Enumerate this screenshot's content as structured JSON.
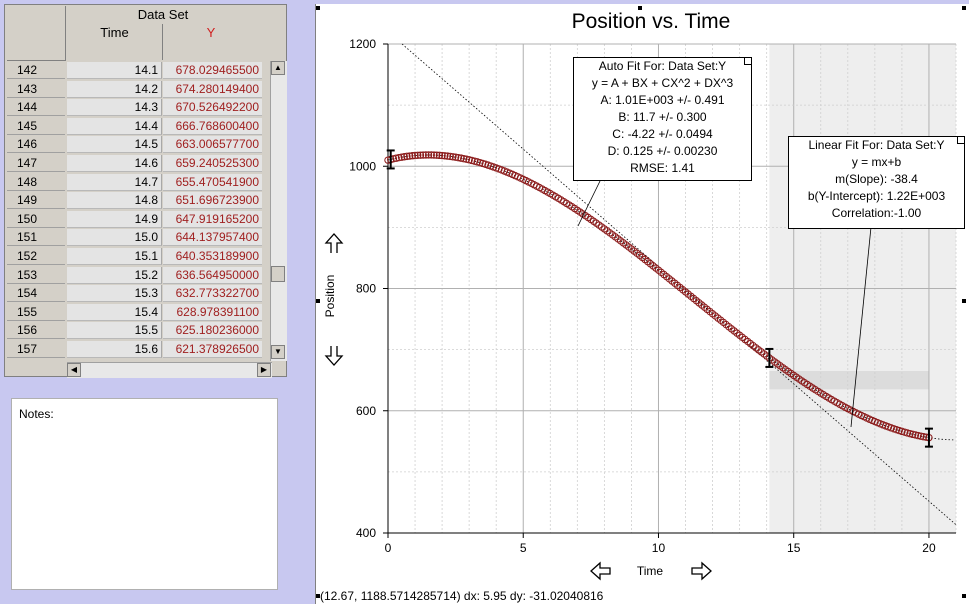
{
  "table": {
    "group_header": "Data Set",
    "columns": [
      "Time",
      "Y"
    ],
    "rows": [
      {
        "n": "142",
        "t": "14.1",
        "y": "678.029465500"
      },
      {
        "n": "143",
        "t": "14.2",
        "y": "674.280149400"
      },
      {
        "n": "144",
        "t": "14.3",
        "y": "670.526492200"
      },
      {
        "n": "145",
        "t": "14.4",
        "y": "666.768600400"
      },
      {
        "n": "146",
        "t": "14.5",
        "y": "663.006577700"
      },
      {
        "n": "147",
        "t": "14.6",
        "y": "659.240525300"
      },
      {
        "n": "148",
        "t": "14.7",
        "y": "655.470541900"
      },
      {
        "n": "149",
        "t": "14.8",
        "y": "651.696723900"
      },
      {
        "n": "150",
        "t": "14.9",
        "y": "647.919165200"
      },
      {
        "n": "151",
        "t": "15.0",
        "y": "644.137957400"
      },
      {
        "n": "152",
        "t": "15.1",
        "y": "640.353189900"
      },
      {
        "n": "153",
        "t": "15.2",
        "y": "636.564950000"
      },
      {
        "n": "154",
        "t": "15.3",
        "y": "632.773322700"
      },
      {
        "n": "155",
        "t": "15.4",
        "y": "628.978391100"
      },
      {
        "n": "156",
        "t": "15.5",
        "y": "625.180236000"
      },
      {
        "n": "157",
        "t": "15.6",
        "y": "621.378926500"
      }
    ]
  },
  "notes": {
    "label": "Notes:"
  },
  "graph": {
    "title": "Position vs. Time",
    "xlabel": "Time",
    "ylabel": "Position",
    "status": "(12.67, 1188.5714285714) dx: 5.95 dy: -31.02040816",
    "autofit": {
      "lines": [
        "Auto Fit For:  Data Set:Y",
        "y = A + BX + CX^2 + DX^3",
        "A: 1.01E+003 +/- 0.491",
        "B: 11.7 +/- 0.300",
        "C: -4.22 +/- 0.0494",
        "D: 0.125 +/- 0.00230",
        "RMSE: 1.41"
      ]
    },
    "linearfit": {
      "lines": [
        "Linear Fit For:  Data Set:Y",
        "y = mx+b",
        "m(Slope): -38.4",
        "b(Y-Intercept): 1.22E+003",
        "Correlation:-1.00"
      ]
    }
  },
  "chart_data": {
    "type": "scatter",
    "title": "Position vs. Time",
    "xlabel": "Time",
    "ylabel": "Position",
    "xlim": [
      0,
      21
    ],
    "ylim": [
      400,
      1200
    ],
    "xticks": [
      0,
      5,
      10,
      15,
      20
    ],
    "yticks": [
      400,
      600,
      800,
      1000,
      1200
    ],
    "grid": true,
    "series": [
      {
        "name": "Y",
        "model": "cubic",
        "coefficients": {
          "A": 1010,
          "B": 11.7,
          "C": -4.22,
          "D": 0.125
        },
        "x_range": [
          0,
          20
        ],
        "step": 0.1
      },
      {
        "name": "Linear Fit",
        "slope": -38.4,
        "intercept": 1220,
        "x_range": [
          0,
          21
        ]
      }
    ],
    "selection_range": [
      14.1,
      21
    ],
    "colors": {
      "data": "#8b1a1a",
      "selection": "#eeeeee",
      "grid": "#b0b0b0"
    }
  }
}
